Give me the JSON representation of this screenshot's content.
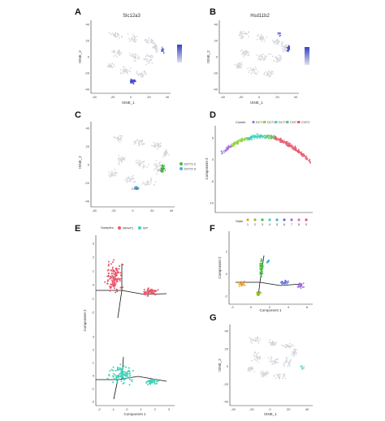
{
  "colors": {
    "grey": "#d4d6dc",
    "blue": "#4a50c8",
    "green": "#3fbf3f",
    "green2": "#8fd43a",
    "lightblue": "#5aa8e0",
    "red": "#e8566a",
    "teal": "#3fd0b8",
    "purple": "#a070e0",
    "orange": "#f0a020",
    "black": "#111111"
  },
  "panels": {
    "A": {
      "label": "A",
      "title": "Slc12a3",
      "xlabel": "tSNE_1",
      "ylabel": "tSNE_2"
    },
    "B": {
      "label": "B",
      "title": "Hsd11b2",
      "xlabel": "tSNE_1",
      "ylabel": "tSNE_2"
    },
    "C": {
      "label": "C",
      "ylabel": "tSNE_2",
      "legend": [
        "DCT1-2",
        "DCT2-3"
      ],
      "annot_1": "DCT1",
      "annot_2": "CNT"
    },
    "D": {
      "label": "D",
      "legend_title": "Cluster",
      "legend": [
        "DCT1",
        "DCT2",
        "DCT3",
        "CNT1",
        "CNT2"
      ],
      "ylabel": "Component 2"
    },
    "E": {
      "label": "E",
      "legend_title": "Samples",
      "legend": [
        "NPHP1",
        "WT"
      ],
      "xlabel": "Component 1",
      "ylabel": "Component 2"
    },
    "F": {
      "label": "F",
      "legend_title": "State",
      "legend": [
        "1",
        "2",
        "3",
        "4",
        "5",
        "6",
        "7",
        "8",
        "9"
      ],
      "xlabel": "Component 1",
      "ylabel": "Component 2"
    },
    "G": {
      "label": "G",
      "xlabel": "tSNE_1",
      "ylabel": "tSNE_2"
    }
  },
  "chart_data": [
    {
      "panel": "A",
      "type": "scatter",
      "title": "Slc12a3",
      "xlabel": "tSNE_1",
      "ylabel": "tSNE_2",
      "xticks": [
        "-40",
        "-20",
        "0",
        "20",
        "40"
      ],
      "yticks": [
        "40",
        "20",
        "0",
        "-20",
        "-40"
      ],
      "note": "expression feature plot; high expression in lower-right cluster"
    },
    {
      "panel": "B",
      "type": "scatter",
      "title": "Hsd11b2",
      "xlabel": "tSNE_1",
      "ylabel": "tSNE_2",
      "xticks": [
        "-40",
        "-20",
        "0",
        "20",
        "40"
      ],
      "yticks": [
        "40",
        "20",
        "0",
        "-20",
        "-40"
      ],
      "note": "expression feature plot; high expression in right-side clusters"
    },
    {
      "panel": "C",
      "type": "scatter",
      "ylabel": "tSNE_2",
      "xticks": [
        "-40",
        "-20",
        "0",
        "20",
        "40"
      ],
      "yticks": [
        "40",
        "20",
        "0",
        "-20",
        "-40"
      ],
      "series": [
        {
          "name": "DCT1-2"
        },
        {
          "name": "DCT2-3"
        }
      ]
    },
    {
      "panel": "D",
      "type": "scatter",
      "ylabel": "Component 2",
      "yticks": [
        "5",
        "0",
        "-5",
        "-10"
      ],
      "series": [
        {
          "name": "DCT1"
        },
        {
          "name": "DCT2"
        },
        {
          "name": "DCT3"
        },
        {
          "name": "CNT1"
        },
        {
          "name": "CNT2"
        }
      ]
    },
    {
      "panel": "E",
      "type": "scatter",
      "xlabel": "Component 1",
      "ylabel": "Component 2",
      "xticks": [
        "-2",
        "-1",
        "0",
        "1",
        "2",
        "3"
      ],
      "yticks_top": [
        "3",
        "2",
        "1",
        "0",
        "-1",
        "-2"
      ],
      "yticks_bottom": [
        "3",
        "2",
        "1",
        "0",
        "-1",
        "-2"
      ],
      "series": [
        {
          "name": "NPHP1"
        },
        {
          "name": "WT"
        }
      ]
    },
    {
      "panel": "F",
      "type": "scatter",
      "xlabel": "Component 1",
      "ylabel": "Component 2",
      "xticks": [
        "-2",
        "0",
        "2",
        "4",
        "6"
      ],
      "yticks": [
        "2",
        "0",
        "-2"
      ],
      "series": [
        {
          "name": "1"
        },
        {
          "name": "2"
        },
        {
          "name": "3"
        },
        {
          "name": "4"
        },
        {
          "name": "5"
        },
        {
          "name": "6"
        },
        {
          "name": "7"
        },
        {
          "name": "8"
        },
        {
          "name": "9"
        }
      ]
    },
    {
      "panel": "G",
      "type": "scatter",
      "xlabel": "tSNE_1",
      "ylabel": "tSNE_2",
      "xticks": [
        "-40",
        "-20",
        "0",
        "20",
        "40"
      ],
      "yticks": [
        "40",
        "20",
        "0",
        "-20",
        "-40"
      ]
    }
  ]
}
